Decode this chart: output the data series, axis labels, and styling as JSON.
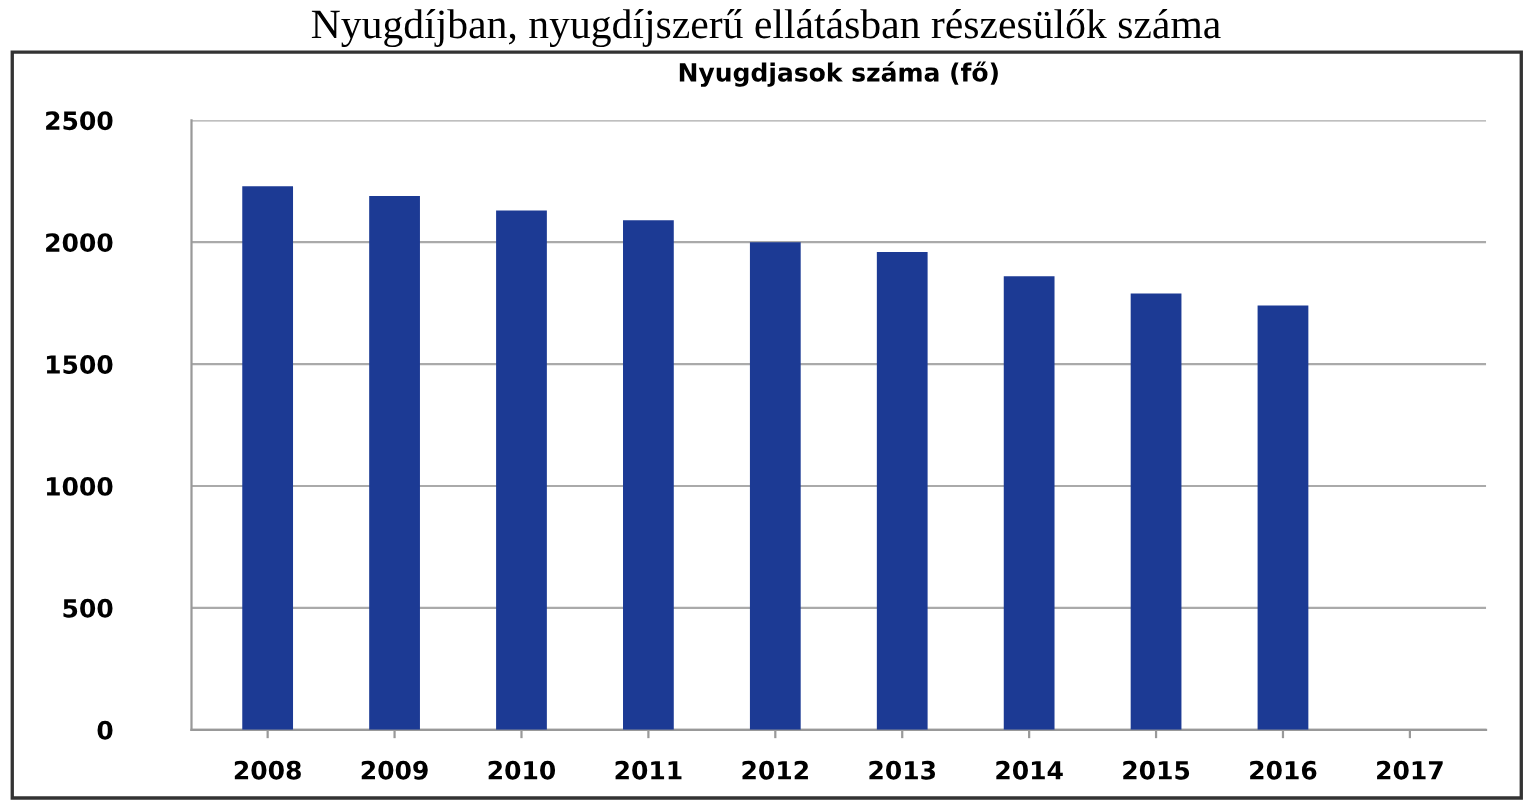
{
  "chart_data": {
    "type": "bar",
    "title": "Nyugdjasok száma (fő)",
    "subtitle": "Nyugdíjban, nyugdíjszerű ellátásban részesülők száma",
    "categories": [
      "2008",
      "2009",
      "2010",
      "2011",
      "2012",
      "2013",
      "2014",
      "2015",
      "2016",
      "2017"
    ],
    "values": [
      2230,
      2190,
      2130,
      2090,
      2000,
      1960,
      1860,
      1790,
      1740,
      null
    ],
    "color": "#1c3a94",
    "ylim": [
      0,
      2500
    ],
    "yticks": [
      0,
      500,
      1000,
      1500,
      2000,
      2500
    ],
    "grid": "y"
  }
}
